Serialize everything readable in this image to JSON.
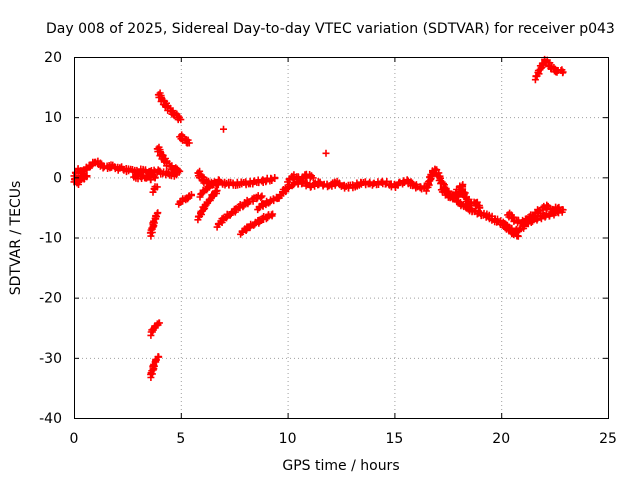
{
  "colors": {
    "series": "#ff0000",
    "grid": "#a0a0a0",
    "axis": "#000000"
  },
  "chart_data": {
    "type": "scatter",
    "title": "Day 008 of 2025, Sidereal Day-to-day VTEC variation (SDTVAR) for receiver p043",
    "xlabel": "GPS time / hours",
    "ylabel": "SDTVAR / TECUs",
    "xlim": [
      0,
      25
    ],
    "ylim": [
      -40,
      20
    ],
    "x_ticks": [
      0,
      5,
      10,
      15,
      20,
      25
    ],
    "y_ticks": [
      -40,
      -30,
      -20,
      -10,
      0,
      10,
      20
    ],
    "x_tick_labels": [
      "0",
      "5",
      "10",
      "15",
      "20",
      "25"
    ],
    "y_tick_labels": [
      "-40",
      "-30",
      "-20",
      "-10",
      "0",
      "10",
      "20"
    ],
    "grid": true,
    "marker": "plus",
    "series": [
      {
        "name": "SDTVAR",
        "segments": [
          {
            "x": [
              0.0,
              0.2,
              0.4,
              0.6,
              0.8,
              1.0,
              1.2,
              1.4,
              1.6,
              1.8,
              2.0,
              2.2,
              2.4,
              2.6,
              2.8,
              3.0,
              3.2,
              3.4,
              3.6,
              3.8,
              4.0,
              4.2,
              4.4,
              4.6,
              4.8
            ],
            "y": [
              0.5,
              1.2,
              0.8,
              1.6,
              2.0,
              2.6,
              2.2,
              1.8,
              1.7,
              1.9,
              1.4,
              1.6,
              1.1,
              1.3,
              1.0,
              0.9,
              1.2,
              1.0,
              0.8,
              1.1,
              0.9,
              0.7,
              0.6,
              0.5,
              0.4
            ]
          },
          {
            "x": [
              0.0,
              0.1,
              0.2,
              0.3,
              0.4,
              0.5,
              0.6
            ],
            "y": [
              -0.5,
              0.0,
              -1.0,
              -0.3,
              0.4,
              -0.2,
              0.1
            ]
          },
          {
            "x": [
              2.8,
              3.0,
              3.3,
              3.6,
              3.8
            ],
            "y": [
              0.3,
              0.0,
              0.1,
              -0.2,
              0.0
            ]
          },
          {
            "x": [
              3.9,
              4.05,
              4.2,
              4.35,
              4.5,
              4.65,
              4.8,
              4.95
            ],
            "y": [
              5.0,
              4.0,
              3.0,
              2.3,
              1.8,
              1.5,
              1.2,
              1.0
            ]
          },
          {
            "x": [
              3.95,
              4.1,
              4.25,
              4.4,
              4.55,
              4.7,
              4.85,
              5.0
            ],
            "y": [
              14.0,
              13.0,
              12.2,
              11.5,
              11.0,
              10.5,
              10.0,
              9.6
            ]
          },
          {
            "x": [
              4.95,
              5.1,
              5.25,
              5.4
            ],
            "y": [
              7.0,
              6.5,
              6.0,
              5.7
            ]
          },
          {
            "x": [
              7.0
            ],
            "y": [
              8.0
            ]
          },
          {
            "x": [
              3.7,
              3.8,
              3.9
            ],
            "y": [
              -2.2,
              -1.8,
              -1.6
            ]
          },
          {
            "x": [
              3.6,
              3.65,
              3.7,
              3.75,
              3.8,
              3.85,
              3.9
            ],
            "y": [
              -9.5,
              -8.7,
              -8.0,
              -7.4,
              -6.9,
              -6.4,
              -6.0
            ]
          },
          {
            "x": [
              3.6,
              3.65,
              3.7,
              3.8,
              3.9,
              4.0
            ],
            "y": [
              -26.0,
              -25.6,
              -25.2,
              -24.8,
              -24.5,
              -24.2
            ]
          },
          {
            "x": [
              3.6,
              3.65,
              3.7,
              3.75,
              3.8,
              3.85,
              3.9,
              3.95
            ],
            "y": [
              -33.0,
              -32.4,
              -31.8,
              -31.2,
              -30.7,
              -30.3,
              -30.0,
              -29.8
            ]
          },
          {
            "x": [
              4.9,
              5.1,
              5.3,
              5.5
            ],
            "y": [
              -4.2,
              -3.8,
              -3.4,
              -3.0
            ]
          },
          {
            "x": [
              5.8,
              5.9,
              6.0,
              6.1,
              6.2,
              6.3,
              6.4,
              6.5,
              6.6,
              6.8,
              7.0,
              7.3,
              7.6,
              7.9,
              8.2,
              8.5,
              8.8,
              9.1,
              9.4
            ],
            "y": [
              1.0,
              0.3,
              -0.2,
              -0.6,
              -0.8,
              -0.9,
              -1.0,
              -1.1,
              -1.1,
              -1.0,
              -1.0,
              -1.1,
              -1.1,
              -1.0,
              -0.9,
              -0.8,
              -0.6,
              -0.4,
              -0.2
            ]
          },
          {
            "x": [
              5.8,
              5.95,
              6.1,
              6.25,
              6.4,
              6.55,
              6.7
            ],
            "y": [
              -6.8,
              -5.9,
              -5.0,
              -4.2,
              -3.5,
              -2.8,
              -2.2
            ]
          },
          {
            "x": [
              5.9,
              6.05,
              6.2,
              6.35,
              6.5,
              6.65,
              6.8
            ],
            "y": [
              -3.0,
              -2.4,
              -1.9,
              -1.5,
              -1.1,
              -0.8,
              -0.5
            ]
          },
          {
            "x": [
              6.7,
              7.0,
              7.3,
              7.6,
              7.9,
              8.2,
              8.5,
              8.8
            ],
            "y": [
              -8.0,
              -7.0,
              -6.1,
              -5.3,
              -4.6,
              -4.0,
              -3.5,
              -3.1
            ]
          },
          {
            "x": [
              7.8,
              8.1,
              8.4,
              8.7,
              9.0,
              9.3
            ],
            "y": [
              -9.2,
              -8.5,
              -7.8,
              -7.2,
              -6.6,
              -6.1
            ]
          },
          {
            "x": [
              8.6,
              8.85,
              9.1,
              9.35,
              9.6
            ],
            "y": [
              -5.1,
              -4.6,
              -4.1,
              -3.7,
              -3.3
            ]
          },
          {
            "x": [
              9.6,
              9.9,
              10.2,
              10.5,
              10.8,
              11.1,
              11.4,
              11.7,
              12.0,
              12.3,
              12.6,
              12.9,
              13.2,
              13.5,
              13.8,
              14.1,
              14.4,
              14.7,
              15.0,
              15.3,
              15.6,
              15.9,
              16.2,
              16.5
            ],
            "y": [
              -3.2,
              -2.0,
              -1.2,
              -0.8,
              -1.0,
              -1.5,
              -0.9,
              -1.2,
              -1.4,
              -0.8,
              -1.5,
              -1.6,
              -1.3,
              -1.0,
              -0.9,
              -1.2,
              -0.8,
              -1.0,
              -1.5,
              -0.9,
              -0.6,
              -1.3,
              -1.8,
              -1.6
            ]
          },
          {
            "x": [
              10.0,
              10.3,
              10.6,
              10.9,
              11.2
            ],
            "y": [
              -0.5,
              0.2,
              -0.3,
              0.4,
              -0.1
            ]
          },
          {
            "x": [
              11.8
            ],
            "y": [
              4.0
            ]
          },
          {
            "x": [
              16.5,
              16.6,
              16.7,
              16.8,
              16.9,
              17.0,
              17.1,
              17.2,
              17.3,
              17.4,
              17.5,
              17.6,
              17.7,
              17.8,
              17.9,
              18.0,
              18.2,
              18.4,
              18.6,
              18.8,
              19.0,
              19.2,
              19.4,
              19.6,
              19.8,
              20.0,
              20.2,
              20.4,
              20.6,
              20.8
            ],
            "y": [
              -2.0,
              -1.0,
              0.0,
              1.0,
              1.2,
              0.8,
              0.0,
              -0.8,
              -1.5,
              -2.0,
              -2.5,
              -3.0,
              -3.3,
              -3.6,
              -3.9,
              -4.2,
              -4.6,
              -5.0,
              -5.4,
              -5.8,
              -6.0,
              -6.2,
              -6.5,
              -6.9,
              -7.2,
              -7.6,
              -8.0,
              -8.6,
              -9.2,
              -9.8
            ]
          },
          {
            "x": [
              17.2,
              17.4,
              17.6,
              17.8,
              18.0,
              18.2
            ],
            "y": [
              -1.8,
              -2.6,
              -3.2,
              -3.0,
              -2.0,
              -1.2
            ]
          },
          {
            "x": [
              18.0,
              18.2,
              18.4,
              18.6,
              18.8,
              19.0
            ],
            "y": [
              -3.0,
              -2.2,
              -3.8,
              -4.5,
              -4.2,
              -5.0
            ]
          },
          {
            "x": [
              20.2,
              20.5,
              20.8,
              21.1,
              21.4,
              21.7,
              22.0,
              22.3,
              22.6,
              22.9
            ],
            "y": [
              -8.0,
              -9.2,
              -8.8,
              -8.0,
              -7.2,
              -6.8,
              -6.5,
              -6.2,
              -5.8,
              -5.4
            ]
          },
          {
            "x": [
              20.3,
              20.6,
              20.9,
              21.2,
              21.5,
              21.8,
              22.1,
              22.4,
              22.7
            ],
            "y": [
              -6.0,
              -7.0,
              -7.5,
              -7.0,
              -6.3,
              -5.5,
              -4.8,
              -5.5,
              -5.0
            ]
          },
          {
            "x": [
              21.6,
              21.75,
              21.9,
              22.05,
              22.2,
              22.35,
              22.5,
              22.65,
              22.8,
              22.9
            ],
            "y": [
              16.5,
              17.5,
              18.5,
              19.5,
              19.0,
              18.2,
              17.8,
              17.7,
              17.6,
              17.5
            ]
          }
        ]
      }
    ]
  }
}
